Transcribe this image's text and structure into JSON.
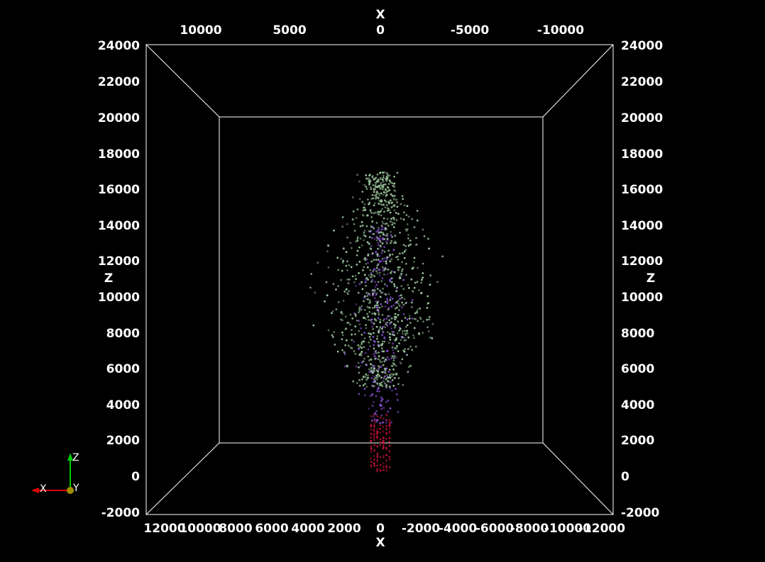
{
  "viewer": {
    "render_view": "3D render view",
    "background": "#000000",
    "box_color": "#ffffff"
  },
  "chart_data": {
    "type": "scatter",
    "projection": "3D point cloud viewed along Y axis (X horizontal reversed, Z vertical)",
    "axes": {
      "x_top": {
        "title": "X",
        "ticks": [
          "10000",
          "5000",
          "0",
          "-5000",
          "-10000"
        ],
        "values": [
          10000,
          5000,
          0,
          -5000,
          -10000
        ]
      },
      "x_bottom": {
        "title": "X",
        "ticks": [
          "12000",
          "10000",
          "8000",
          "6000",
          "4000",
          "2000",
          "0",
          "-2000",
          "-4000",
          "-6000",
          "-8000",
          "-10000",
          "-12000"
        ],
        "values": [
          12000,
          10000,
          8000,
          6000,
          4000,
          2000,
          0,
          -2000,
          -4000,
          -6000,
          -8000,
          -10000,
          -12000
        ]
      },
      "z_left": {
        "title": "Z",
        "ticks": [
          "24000",
          "22000",
          "20000",
          "18000",
          "16000",
          "14000",
          "12000",
          "10000",
          "8000",
          "6000",
          "4000",
          "2000",
          "0",
          "-2000"
        ],
        "values": [
          24000,
          22000,
          20000,
          18000,
          16000,
          14000,
          12000,
          10000,
          8000,
          6000,
          4000,
          2000,
          0,
          -2000
        ]
      },
      "z_right": {
        "title": "Z",
        "ticks": [
          "24000",
          "22000",
          "20000",
          "18000",
          "16000",
          "14000",
          "12000",
          "10000",
          "8000",
          "6000",
          "4000",
          "2000",
          "0",
          "-2000"
        ],
        "values": [
          24000,
          22000,
          20000,
          18000,
          16000,
          14000,
          12000,
          10000,
          8000,
          6000,
          4000,
          2000,
          0,
          -2000
        ]
      },
      "xlim": [
        12500,
        -12500
      ],
      "zlim": [
        -2000,
        24000
      ]
    },
    "clusters": [
      {
        "name": "",
        "color": "#c8103a",
        "x_range": [
          -600,
          600
        ],
        "z_range": [
          300,
          3500
        ]
      },
      {
        "name": "",
        "color": "#8a4fd8",
        "x_range": [
          -2500,
          2500
        ],
        "z_range": [
          3000,
          14000
        ]
      },
      {
        "name": "",
        "color": "#9fc9a0",
        "x_range": [
          -4500,
          4500
        ],
        "z_range": [
          5000,
          17000
        ]
      }
    ]
  },
  "orientation_triad": {
    "labels": {
      "x": "X",
      "y": "Y",
      "z": "Z"
    },
    "colors": {
      "x": "#dd0000",
      "y": "#a09000",
      "z": "#00cc00"
    }
  }
}
